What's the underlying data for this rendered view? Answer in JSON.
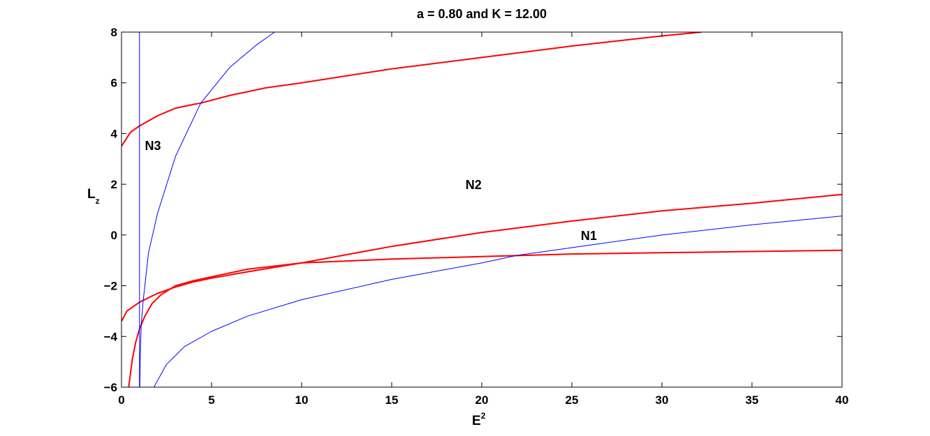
{
  "chart_data": {
    "type": "line",
    "title": "a = 0.80 and K = 12.00",
    "xlabel": "E",
    "xlabel_superscript": "2",
    "ylabel": "L",
    "ylabel_subscript": "z",
    "xlim": [
      0,
      40
    ],
    "ylim": [
      -6,
      8
    ],
    "xticks": [
      0,
      5,
      10,
      15,
      20,
      25,
      30,
      35,
      40
    ],
    "yticks": [
      -6,
      -4,
      -2,
      0,
      2,
      4,
      6,
      8
    ],
    "xtick_labels": [
      "0",
      "5",
      "10",
      "15",
      "20",
      "25",
      "30",
      "35",
      "40"
    ],
    "ytick_labels": [
      "−6",
      "−4",
      "−2",
      "0",
      "2",
      "4",
      "6",
      "8"
    ],
    "grid": false,
    "legend": "none",
    "colors": {
      "red": "#ff0000",
      "blue": "#0000ff"
    },
    "series": [
      {
        "color": "#ff0000",
        "width": 2,
        "x": [
          0,
          0.5,
          1,
          2,
          3,
          4,
          4.4,
          6,
          8,
          10,
          15,
          20,
          25,
          30,
          32.2
        ],
        "y": [
          3.5,
          4.05,
          4.3,
          4.7,
          5.0,
          5.15,
          5.2,
          5.5,
          5.8,
          6.0,
          6.55,
          7.0,
          7.45,
          7.85,
          8.0
        ]
      },
      {
        "color": "#ff0000",
        "width": 2,
        "x": [
          0,
          0.3,
          0.7,
          1,
          2,
          3,
          4,
          5,
          7,
          10,
          15,
          20,
          25,
          30,
          35,
          40
        ],
        "y": [
          -3.4,
          -3.0,
          -2.8,
          -2.65,
          -2.3,
          -2.05,
          -1.85,
          -1.7,
          -1.45,
          -1.1,
          -0.45,
          0.1,
          0.55,
          0.95,
          1.25,
          1.6
        ]
      },
      {
        "color": "#ff0000",
        "width": 2,
        "x": [
          0.4,
          0.6,
          0.8,
          1,
          1.3,
          1.7,
          2.2,
          3,
          4,
          5,
          7,
          10,
          15,
          20,
          25,
          30,
          35,
          40
        ],
        "y": [
          -6.0,
          -4.9,
          -4.2,
          -3.7,
          -3.2,
          -2.7,
          -2.35,
          -2.0,
          -1.8,
          -1.65,
          -1.35,
          -1.1,
          -0.95,
          -0.85,
          -0.75,
          -0.7,
          -0.65,
          -0.6
        ]
      },
      {
        "color": "#0000ff",
        "width": 1,
        "x": [
          1.0,
          1.0
        ],
        "y": [
          -6,
          8
        ]
      },
      {
        "color": "#0000ff",
        "width": 1,
        "x": [
          1.02,
          1.05,
          1.1,
          1.2,
          1.5,
          2,
          3,
          4.4,
          6,
          7.5,
          8.5
        ],
        "y": [
          -6.0,
          -4.5,
          -3.5,
          -2.6,
          -0.7,
          0.85,
          3.1,
          5.2,
          6.6,
          7.5,
          8.0
        ]
      },
      {
        "color": "#0000ff",
        "width": 1,
        "x": [
          1.8,
          2.5,
          3.5,
          5,
          7,
          10,
          15,
          20,
          22,
          25,
          30,
          35,
          40
        ],
        "y": [
          -6.0,
          -5.1,
          -4.4,
          -3.8,
          -3.2,
          -2.55,
          -1.75,
          -1.1,
          -0.8,
          -0.5,
          0.0,
          0.4,
          0.75
        ]
      }
    ],
    "annotations": [
      {
        "text": "N3",
        "x": 1.3,
        "y": 3.55
      },
      {
        "text": "N2",
        "x": 19.1,
        "y": 2.0
      },
      {
        "text": "N1",
        "x": 25.5,
        "y": 0.0
      }
    ]
  }
}
